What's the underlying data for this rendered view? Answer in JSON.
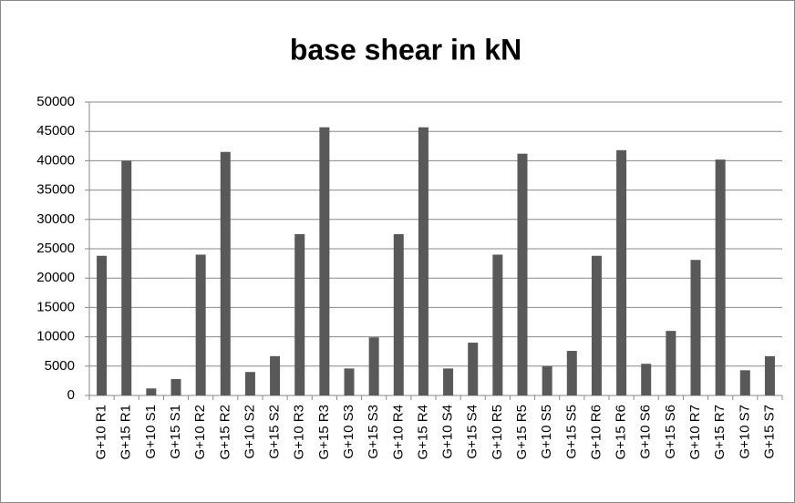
{
  "chart_data": {
    "type": "bar",
    "title": "base shear in kN",
    "categories": [
      "G+10 R1",
      "G+15 R1",
      "G+10 S1",
      "G+15 S1",
      "G+10 R2",
      "G+15 R2",
      "G+10 S2",
      "G+15 S2",
      "G+10 R3",
      "G+15 R3",
      "G+10 S3",
      "G+15 S3",
      "G+10 R4",
      "G+15 R4",
      "G+10 S4",
      "G+15 S4",
      "G+10 R5",
      "G+15 R5",
      "G+10 S5",
      "G+15 S5",
      "G+10 R6",
      "G+15 R6",
      "G+10 S6",
      "G+15 S6",
      "G+10 R7",
      "G+15 R7",
      "G+10 S7",
      "G+15 S7"
    ],
    "values": [
      23800,
      40000,
      1200,
      2800,
      24000,
      41500,
      4000,
      6700,
      27500,
      45700,
      4600,
      9900,
      27500,
      45700,
      4600,
      9000,
      24000,
      41200,
      5000,
      7600,
      23800,
      41800,
      5400,
      11000,
      23100,
      40200,
      4300,
      6700
    ],
    "color": "#595959",
    "ylim": [
      0,
      50000
    ],
    "yticks": [
      0,
      5000,
      10000,
      15000,
      20000,
      25000,
      30000,
      35000,
      40000,
      45000,
      50000
    ],
    "grid": true
  }
}
